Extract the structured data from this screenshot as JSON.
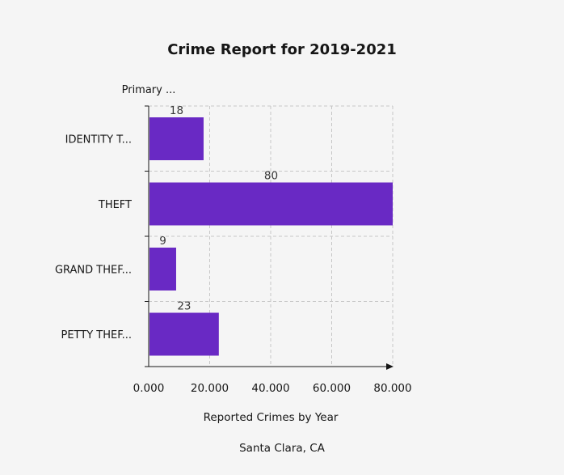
{
  "chart_data": {
    "type": "bar",
    "orientation": "horizontal",
    "title": "Crime Report for 2019-2021",
    "ylabel": "Primary ...",
    "xlabel": "Reported Crimes by Year",
    "footnote": "Santa Clara, CA",
    "categories": [
      "IDENTITY T...",
      "THEFT",
      "GRAND THEF...",
      "PETTY THEF..."
    ],
    "values": [
      18,
      80,
      9,
      23
    ],
    "data_labels": [
      "18",
      "80",
      "9",
      "23"
    ],
    "xlim": [
      0,
      80
    ],
    "x_ticks": [
      0,
      20,
      40,
      60,
      80
    ],
    "x_tick_labels": [
      "0.000",
      "20.000",
      "40.000",
      "60.000",
      "80.000"
    ],
    "grid": true,
    "legend": "none",
    "colors": {
      "bar": "#6929c4",
      "grid": "#c6c6c6",
      "axis": "#161616",
      "background": "#f5f5f5"
    }
  }
}
